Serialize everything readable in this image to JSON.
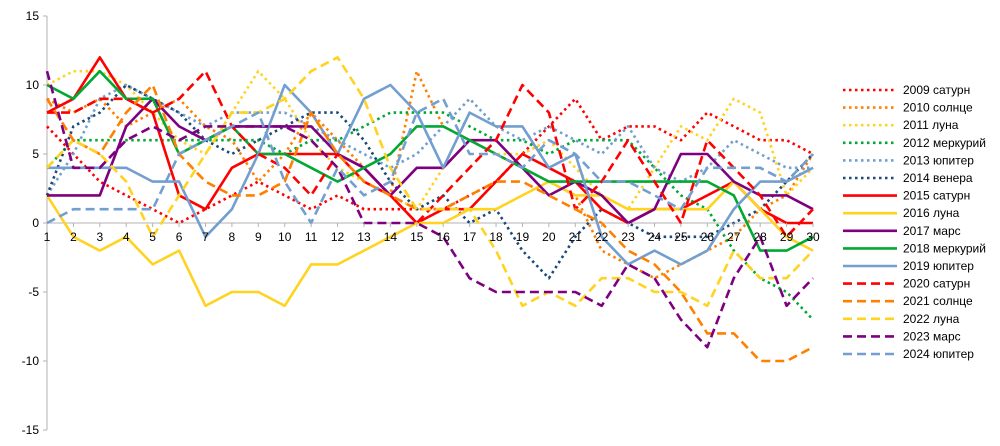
{
  "chart_data": {
    "type": "line",
    "x": [
      1,
      2,
      3,
      4,
      5,
      6,
      7,
      8,
      9,
      10,
      11,
      12,
      13,
      14,
      15,
      16,
      17,
      18,
      19,
      20,
      21,
      22,
      23,
      24,
      25,
      26,
      27,
      28,
      29,
      30
    ],
    "ylim": [
      -15,
      15
    ],
    "yticks": [
      -15,
      -10,
      -5,
      0,
      5,
      10,
      15
    ],
    "xaxis_crosses_at": 0,
    "grid": {
      "major_y": false,
      "major_x": false
    },
    "legend": "right",
    "series": [
      {
        "name": "2009 сатурн",
        "color": "#ff0000",
        "dash": "dotted",
        "values": [
          7,
          5,
          3,
          2,
          1,
          0,
          1,
          2,
          3,
          2,
          1,
          2,
          1,
          1,
          1,
          1,
          2,
          3,
          5,
          7,
          9,
          6,
          7,
          7,
          6,
          8,
          7,
          6,
          6,
          5
        ]
      },
      {
        "name": "2010 солнце",
        "color": "#ff8000",
        "dash": "dotted",
        "values": [
          9,
          8,
          9,
          7,
          8,
          9,
          7,
          6,
          3,
          5,
          8,
          6,
          4,
          2,
          11,
          7,
          6,
          5,
          4,
          3,
          2,
          -2,
          -3,
          -4,
          -3,
          -2,
          -1,
          1,
          2,
          5
        ]
      },
      {
        "name": "2011 луна",
        "color": "#ffd320",
        "dash": "dotted",
        "values": [
          10,
          11,
          11,
          10,
          8,
          6,
          5,
          8,
          11,
          9,
          6,
          4,
          3,
          2,
          1,
          4,
          6,
          5,
          5,
          6,
          4,
          2,
          1,
          4,
          7,
          6,
          9,
          8,
          2,
          4
        ]
      },
      {
        "name": "2012 меркурий",
        "color": "#00a933",
        "dash": "dotted",
        "values": [
          4,
          6,
          6,
          6,
          6,
          6,
          6,
          6,
          6,
          5,
          6,
          6,
          7,
          8,
          8,
          8,
          7,
          6,
          6,
          5,
          6,
          6,
          6,
          4,
          2,
          1,
          -2,
          -4,
          -5,
          -7
        ]
      },
      {
        "name": "2013 юпитер",
        "color": "#729fcf",
        "dash": "dotted",
        "values": [
          2,
          5,
          9,
          10,
          9,
          8,
          7,
          8,
          8,
          8,
          7,
          6,
          5,
          4,
          5,
          7,
          9,
          7,
          6,
          7,
          6,
          5,
          7,
          4,
          3,
          4,
          6,
          5,
          4,
          4
        ]
      },
      {
        "name": "2014 венера",
        "color": "#1b4a7a",
        "dash": "dotted",
        "values": [
          2,
          7,
          8,
          10,
          9,
          8,
          6,
          5,
          6,
          7,
          8,
          8,
          6,
          3,
          1,
          2,
          0,
          1,
          -2,
          -4,
          -1,
          1,
          0,
          -1,
          -1,
          -1,
          0,
          1,
          3,
          5
        ]
      },
      {
        "name": "2015 сатурн",
        "color": "#ff0000",
        "dash": "solid",
        "values": [
          8,
          9,
          12,
          9,
          8,
          2,
          1,
          4,
          5,
          5,
          5,
          5,
          4,
          2,
          0,
          1,
          1,
          3,
          5,
          4,
          3,
          1,
          0,
          1,
          1,
          2,
          3,
          1,
          0,
          0
        ]
      },
      {
        "name": "2016 луна",
        "color": "#ffd320",
        "dash": "solid",
        "values": [
          2,
          -1,
          -2,
          -1,
          -3,
          -2,
          -6,
          -5,
          -5,
          -6,
          -3,
          -3,
          -2,
          -1,
          0,
          0,
          1,
          1,
          2,
          3,
          2,
          2,
          1,
          1,
          1,
          1,
          3,
          1,
          -1,
          -2
        ]
      },
      {
        "name": "2017 марс",
        "color": "#7e0080",
        "dash": "solid",
        "values": [
          2,
          2,
          2,
          7,
          9,
          7,
          6,
          7,
          7,
          7,
          7,
          5,
          4,
          2,
          4,
          4,
          6,
          6,
          4,
          2,
          3,
          2,
          0,
          1,
          5,
          5,
          3,
          2,
          2,
          1
        ]
      },
      {
        "name": "2018 меркурий",
        "color": "#00a933",
        "dash": "solid",
        "values": [
          10,
          9,
          11,
          9,
          9,
          5,
          6,
          7,
          5,
          5,
          4,
          3,
          4,
          5,
          7,
          7,
          6,
          5,
          4,
          3,
          3,
          3,
          3,
          3,
          3,
          3,
          2,
          -2,
          -2,
          -1
        ]
      },
      {
        "name": "2019 юпитер",
        "color": "#729fcf",
        "dash": "solid",
        "values": [
          4,
          4,
          4,
          4,
          3,
          3,
          -1,
          1,
          5,
          10,
          8,
          5,
          9,
          10,
          8,
          4,
          8,
          7,
          7,
          4,
          5,
          -1,
          -3,
          -2,
          -3,
          -2,
          1,
          3,
          3,
          4
        ]
      },
      {
        "name": "2020 сатурн",
        "color": "#ff0000",
        "dash": "dashed",
        "values": [
          8,
          8,
          9,
          9,
          8,
          9,
          11,
          7,
          5,
          4,
          2,
          5,
          3,
          2,
          0,
          2,
          4,
          6,
          10,
          8,
          1,
          3,
          6,
          3,
          0,
          6,
          4,
          2,
          -1,
          1
        ]
      },
      {
        "name": "2021 солнце",
        "color": "#ff8000",
        "dash": "dashed",
        "values": [
          9,
          6,
          5,
          8,
          10,
          5,
          3,
          2,
          2,
          3,
          8,
          5,
          3,
          2,
          1,
          1,
          2,
          3,
          3,
          2,
          1,
          0,
          -2,
          -3,
          -5,
          -8,
          -8,
          -10,
          -10,
          -9
        ]
      },
      {
        "name": "2022 луна",
        "color": "#ffd320",
        "dash": "dashed",
        "values": [
          4,
          6,
          5,
          3,
          -1,
          2,
          5,
          8,
          8,
          9,
          11,
          12,
          9,
          4,
          1,
          1,
          1,
          -2,
          -6,
          -5,
          -6,
          -4,
          -4,
          -5,
          -5,
          -6,
          -2,
          -4,
          -4,
          -2
        ]
      },
      {
        "name": "2023 марс",
        "color": "#7e0080",
        "dash": "dashed",
        "values": [
          11,
          4,
          4,
          6,
          7,
          6,
          7,
          7,
          7,
          7,
          6,
          4,
          0,
          0,
          0,
          -1,
          -4,
          -5,
          -5,
          -5,
          -5,
          -6,
          -3,
          -4,
          -7,
          -9,
          -4,
          -1,
          -6,
          -4
        ]
      },
      {
        "name": "2024 юпитер",
        "color": "#729fcf",
        "dash": "dashed",
        "values": [
          0,
          1,
          1,
          1,
          1,
          5,
          6,
          7,
          8,
          3,
          0,
          4,
          2,
          3,
          8,
          9,
          5,
          5,
          4,
          6,
          5,
          3,
          3,
          2,
          1,
          4,
          4,
          4,
          3,
          5
        ]
      }
    ]
  }
}
